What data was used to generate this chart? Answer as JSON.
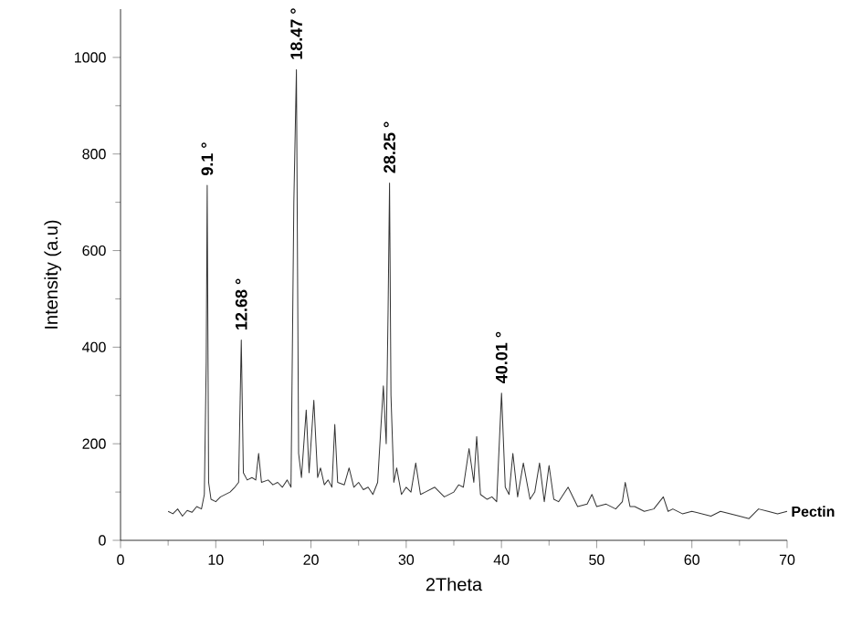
{
  "chart_data": {
    "type": "line",
    "xlabel": "2Theta",
    "ylabel": "Intensity (a.u)",
    "xlim": [
      0,
      70
    ],
    "ylim": [
      0,
      1100
    ],
    "xticks": [
      0,
      10,
      20,
      30,
      40,
      50,
      60,
      70
    ],
    "yticks": [
      0,
      200,
      400,
      600,
      800,
      1000
    ],
    "grid": false,
    "marker": "none",
    "line_style": "solid",
    "series": [
      {
        "name": "Pectin",
        "color": "#333333",
        "x": [
          5,
          5.5,
          6,
          6.5,
          7,
          7.5,
          8,
          8.5,
          8.8,
          9.0,
          9.1,
          9.25,
          9.5,
          10,
          10.5,
          11,
          11.5,
          12,
          12.4,
          12.68,
          12.9,
          13.3,
          13.8,
          14.2,
          14.5,
          14.8,
          15.5,
          16,
          16.5,
          17,
          17.5,
          17.9,
          18.2,
          18.47,
          18.7,
          19,
          19.5,
          19.8,
          20.3,
          20.7,
          21,
          21.4,
          21.8,
          22.2,
          22.5,
          22.8,
          23.5,
          24,
          24.5,
          25,
          25.5,
          26,
          26.5,
          27,
          27.6,
          27.9,
          28.1,
          28.25,
          28.4,
          28.7,
          29,
          29.5,
          30,
          30.5,
          31,
          31.5,
          32,
          33,
          34,
          35,
          35.5,
          36,
          36.6,
          37.1,
          37.4,
          37.8,
          38.5,
          39,
          39.5,
          40.01,
          40.4,
          40.8,
          41.2,
          41.7,
          42.3,
          43,
          43.5,
          44,
          44.5,
          45,
          45.5,
          46,
          47,
          48,
          49,
          49.5,
          50,
          51,
          52,
          52.7,
          53,
          53.5,
          54,
          55,
          56,
          57,
          57.5,
          58,
          59,
          60,
          61,
          62,
          63,
          64,
          65,
          66,
          66.5,
          67,
          68,
          69,
          70
        ],
        "values": [
          60,
          55,
          65,
          50,
          62,
          58,
          70,
          65,
          95,
          370,
          735,
          120,
          85,
          80,
          90,
          95,
          100,
          110,
          120,
          415,
          140,
          125,
          130,
          125,
          180,
          120,
          125,
          115,
          120,
          110,
          125,
          110,
          700,
          975,
          180,
          130,
          270,
          140,
          290,
          130,
          150,
          115,
          125,
          110,
          240,
          120,
          115,
          150,
          110,
          120,
          105,
          110,
          95,
          120,
          320,
          200,
          480,
          740,
          300,
          120,
          150,
          95,
          110,
          100,
          160,
          95,
          100,
          110,
          90,
          100,
          115,
          110,
          190,
          120,
          215,
          95,
          85,
          90,
          80,
          305,
          110,
          95,
          180,
          90,
          160,
          85,
          100,
          160,
          80,
          155,
          85,
          80,
          110,
          70,
          75,
          95,
          70,
          75,
          65,
          80,
          120,
          70,
          70,
          60,
          65,
          90,
          60,
          65,
          55,
          60,
          55,
          50,
          60,
          55,
          50,
          45,
          55,
          65,
          60,
          55,
          60
        ]
      }
    ],
    "annotations": [
      {
        "text": "9.1 °",
        "x": 9.1,
        "y": 735
      },
      {
        "text": "12.68 °",
        "x": 12.68,
        "y": 415
      },
      {
        "text": "18.47 °",
        "x": 18.47,
        "y": 975
      },
      {
        "text": "28.25 °",
        "x": 28.25,
        "y": 740
      },
      {
        "text": "40.01 °",
        "x": 40.01,
        "y": 305
      }
    ]
  }
}
